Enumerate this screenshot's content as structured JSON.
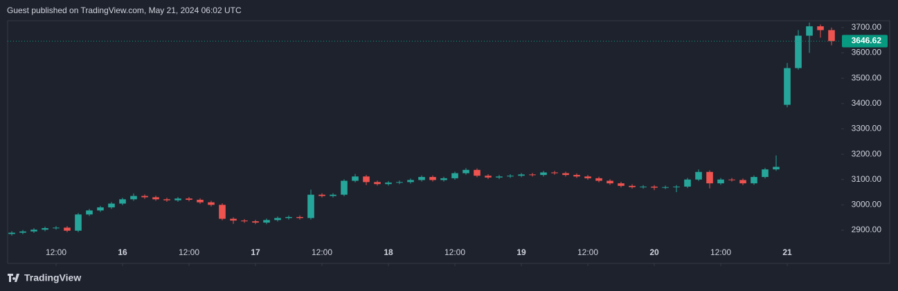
{
  "chart_data": {
    "type": "candlestick",
    "title": "Guest published on TradingView.com, May 21, 2024 06:02 UTC",
    "x": [
      4,
      6,
      8,
      10,
      12,
      14,
      16,
      18,
      20,
      22,
      24,
      26,
      28,
      30,
      32,
      34,
      36,
      38,
      40,
      42,
      44,
      46,
      48,
      50,
      52,
      54,
      56,
      58,
      60,
      62,
      64,
      66,
      68,
      70,
      72,
      74,
      76,
      78,
      80,
      82,
      84,
      86,
      88,
      90,
      92,
      94,
      96,
      98,
      100,
      102,
      104,
      106,
      108,
      110,
      112,
      114,
      116,
      118,
      120,
      122,
      124,
      126,
      128,
      130,
      132,
      134,
      136,
      138,
      140,
      142,
      144,
      146,
      148,
      150,
      152
    ],
    "open": [
      2885,
      2890,
      2895,
      2902,
      2908,
      2910,
      2898,
      2962,
      2978,
      2990,
      3005,
      3022,
      3035,
      3030,
      3022,
      3018,
      3025,
      3020,
      3010,
      3000,
      2945,
      2938,
      2935,
      2930,
      2940,
      2948,
      2952,
      2948,
      3040,
      3035,
      3040,
      3095,
      3112,
      3090,
      3082,
      3088,
      3090,
      3098,
      3110,
      3098,
      3105,
      3125,
      3138,
      3115,
      3108,
      3112,
      3115,
      3120,
      3118,
      3128,
      3125,
      3118,
      3112,
      3105,
      3095,
      3085,
      3075,
      3070,
      3072,
      3068,
      3070,
      3072,
      3100,
      3130,
      3085,
      3100,
      3098,
      3085,
      3110,
      3140,
      3395,
      3540,
      3668,
      3705,
      3690
    ],
    "high": [
      2896,
      2901,
      2908,
      2914,
      2916,
      2916,
      2968,
      2984,
      2996,
      3011,
      3028,
      3045,
      3041,
      3036,
      3028,
      3031,
      3031,
      3026,
      3016,
      3006,
      2951,
      2944,
      2941,
      2946,
      2954,
      2958,
      2958,
      3060,
      3046,
      3046,
      3101,
      3122,
      3118,
      3096,
      3094,
      3096,
      3104,
      3116,
      3116,
      3111,
      3131,
      3145,
      3144,
      3121,
      3118,
      3121,
      3126,
      3126,
      3134,
      3134,
      3131,
      3124,
      3118,
      3111,
      3101,
      3091,
      3081,
      3078,
      3078,
      3076,
      3078,
      3106,
      3140,
      3136,
      3106,
      3106,
      3104,
      3116,
      3146,
      3195,
      3560,
      3690,
      3720,
      3712,
      3700
    ],
    "low": [
      2879,
      2884,
      2889,
      2896,
      2902,
      2892,
      2892,
      2956,
      2972,
      2984,
      2999,
      3016,
      3024,
      3016,
      3012,
      3012,
      3014,
      3004,
      2994,
      2939,
      2925,
      2929,
      2924,
      2924,
      2934,
      2942,
      2942,
      2942,
      3029,
      3029,
      3034,
      3089,
      3078,
      3076,
      3076,
      3082,
      3084,
      3092,
      3092,
      3092,
      3099,
      3119,
      3109,
      3102,
      3102,
      3106,
      3109,
      3112,
      3112,
      3119,
      3112,
      3106,
      3099,
      3089,
      3079,
      3069,
      3064,
      3064,
      3058,
      3062,
      3050,
      3066,
      3094,
      3065,
      3079,
      3092,
      3078,
      3079,
      3104,
      3134,
      3385,
      3534,
      3600,
      3660,
      3630
    ],
    "close": [
      2890,
      2895,
      2902,
      2908,
      2910,
      2898,
      2962,
      2978,
      2990,
      3005,
      3022,
      3035,
      3030,
      3022,
      3018,
      3025,
      3020,
      3010,
      3000,
      2945,
      2938,
      2935,
      2930,
      2940,
      2948,
      2952,
      2948,
      3040,
      3035,
      3040,
      3095,
      3112,
      3090,
      3082,
      3088,
      3090,
      3098,
      3110,
      3098,
      3105,
      3125,
      3138,
      3115,
      3108,
      3112,
      3115,
      3120,
      3118,
      3128,
      3125,
      3118,
      3112,
      3105,
      3095,
      3085,
      3075,
      3070,
      3072,
      3068,
      3070,
      3072,
      3100,
      3130,
      3085,
      3100,
      3098,
      3085,
      3110,
      3140,
      3150,
      3540,
      3668,
      3705,
      3690,
      3646.62
    ],
    "up_color": "#26a69a",
    "down_color": "#ef5350",
    "last_price": 3646.62,
    "last_price_color": "#089981",
    "xlim": [
      3.25,
      153.75
    ],
    "xticks": [
      {
        "value": 12,
        "label": "12:00"
      },
      {
        "value": 24,
        "label": "16"
      },
      {
        "value": 36,
        "label": "12:00"
      },
      {
        "value": 48,
        "label": "17"
      },
      {
        "value": 60,
        "label": "12:00"
      },
      {
        "value": 72,
        "label": "18"
      },
      {
        "value": 84,
        "label": "12:00"
      },
      {
        "value": 96,
        "label": "19"
      },
      {
        "value": 108,
        "label": "12:00"
      },
      {
        "value": 120,
        "label": "20"
      },
      {
        "value": 132,
        "label": "12:00"
      },
      {
        "value": 144,
        "label": "21"
      }
    ],
    "ylim": [
      2769,
      3727
    ],
    "yticks": [
      {
        "value": 2900,
        "label": "2900.00"
      },
      {
        "value": 3000,
        "label": "3000.00"
      },
      {
        "value": 3100,
        "label": "3100.00"
      },
      {
        "value": 3200,
        "label": "3200.00"
      },
      {
        "value": 3300,
        "label": "3300.00"
      },
      {
        "value": 3400,
        "label": "3400.00"
      },
      {
        "value": 3500,
        "label": "3500.00"
      },
      {
        "value": 3600,
        "label": "3600.00"
      },
      {
        "value": 3700,
        "label": "3700.00"
      }
    ]
  },
  "footer": {
    "brand": "TradingView"
  }
}
